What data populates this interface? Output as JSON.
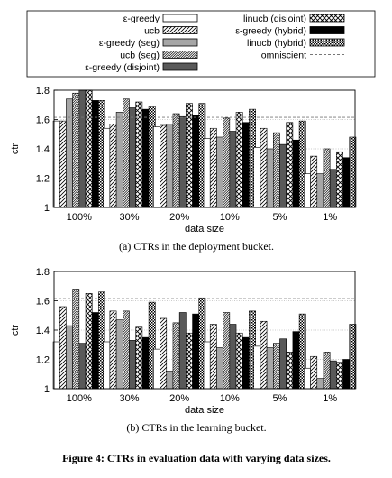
{
  "figure_caption": "Figure 4: CTRs in evaluation data with varying data sizes.",
  "legend": {
    "entries": [
      {
        "label": "ε-greedy",
        "fill": "white"
      },
      {
        "label": "ucb",
        "fill": "diag"
      },
      {
        "label": "ε-greedy (seg)",
        "fill": "#a6a6a6"
      },
      {
        "label": "ucb (seg)",
        "fill": "diag-dense"
      },
      {
        "label": "ε-greedy (disjoint)",
        "fill": "#595959"
      },
      {
        "label": "linucb (disjoint)",
        "fill": "cross"
      },
      {
        "label": "ε-greedy (hybrid)",
        "fill": "#000000"
      },
      {
        "label": "linucb (hybrid)",
        "fill": "checker"
      },
      {
        "label": "omniscient",
        "fill": "dashed-line"
      }
    ]
  },
  "chart_data": [
    {
      "type": "bar",
      "caption": "(a) CTRs in the deployment bucket.",
      "xlabel": "data size",
      "ylabel": "ctr",
      "ylim": [
        1,
        1.8
      ],
      "yticks": [
        "1",
        "1.2",
        "1.4",
        "1.6",
        "1.8"
      ],
      "grid": "horizontal",
      "categories": [
        "100%",
        "30%",
        "20%",
        "10%",
        "5%",
        "1%"
      ],
      "omniscient": 1.615,
      "series": [
        {
          "name": "ε-greedy",
          "values": [
            1.59,
            1.54,
            1.55,
            1.47,
            1.41,
            1.23
          ]
        },
        {
          "name": "ucb",
          "values": [
            1.59,
            1.57,
            1.56,
            1.54,
            1.54,
            1.35
          ]
        },
        {
          "name": "ε-greedy (seg)",
          "values": [
            1.74,
            1.65,
            1.57,
            1.48,
            1.4,
            1.23
          ]
        },
        {
          "name": "ucb (seg)",
          "values": [
            1.78,
            1.74,
            1.64,
            1.61,
            1.51,
            1.4
          ]
        },
        {
          "name": "ε-greedy (disjoint)",
          "values": [
            1.8,
            1.68,
            1.62,
            1.52,
            1.43,
            1.26
          ]
        },
        {
          "name": "linucb (disjoint)",
          "values": [
            1.8,
            1.72,
            1.71,
            1.65,
            1.58,
            1.38
          ]
        },
        {
          "name": "ε-greedy (hybrid)",
          "values": [
            1.73,
            1.67,
            1.63,
            1.58,
            1.46,
            1.34
          ]
        },
        {
          "name": "linucb (hybrid)",
          "values": [
            1.73,
            1.69,
            1.71,
            1.67,
            1.59,
            1.48
          ]
        }
      ]
    },
    {
      "type": "bar",
      "caption": "(b) CTRs in the learning bucket.",
      "xlabel": "data size",
      "ylabel": "ctr",
      "ylim": [
        1,
        1.8
      ],
      "yticks": [
        "1",
        "1.2",
        "1.4",
        "1.6",
        "1.8"
      ],
      "grid": "horizontal",
      "categories": [
        "100%",
        "30%",
        "20%",
        "10%",
        "5%",
        "1%"
      ],
      "omniscient": 1.615,
      "series": [
        {
          "name": "ε-greedy",
          "values": [
            1.32,
            1.32,
            1.27,
            1.32,
            1.29,
            1.14
          ]
        },
        {
          "name": "ucb",
          "values": [
            1.56,
            1.53,
            1.48,
            1.44,
            1.46,
            1.22
          ]
        },
        {
          "name": "ε-greedy (seg)",
          "values": [
            1.43,
            1.47,
            1.12,
            1.28,
            1.28,
            1.07
          ]
        },
        {
          "name": "ucb (seg)",
          "values": [
            1.68,
            1.53,
            1.45,
            1.52,
            1.31,
            1.25
          ]
        },
        {
          "name": "ε-greedy (disjoint)",
          "values": [
            1.31,
            1.33,
            1.52,
            1.44,
            1.34,
            1.19
          ]
        },
        {
          "name": "linucb (disjoint)",
          "values": [
            1.65,
            1.42,
            1.38,
            1.38,
            1.25,
            1.18
          ]
        },
        {
          "name": "ε-greedy (hybrid)",
          "values": [
            1.52,
            1.35,
            1.51,
            1.35,
            1.39,
            1.2
          ]
        },
        {
          "name": "linucb (hybrid)",
          "values": [
            1.66,
            1.59,
            1.62,
            1.53,
            1.51,
            1.44
          ]
        }
      ]
    }
  ]
}
